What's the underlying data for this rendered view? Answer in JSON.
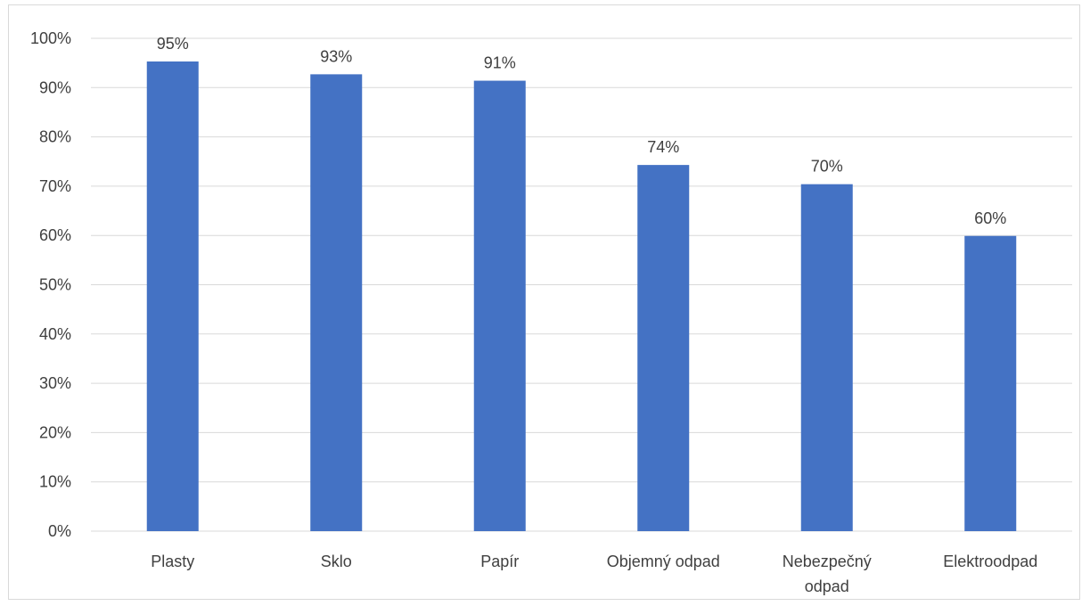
{
  "chart_data": {
    "type": "bar",
    "categories": [
      "Plasty",
      "Sklo",
      "Papír",
      "Objemný odpad",
      "Nebezpečný odpad",
      "Elektroodpad"
    ],
    "category_label_lines": [
      [
        "Plasty"
      ],
      [
        "Sklo"
      ],
      [
        "Papír"
      ],
      [
        "Objemný odpad"
      ],
      [
        "Nebezpečný",
        "odpad"
      ],
      [
        "Elektroodpad"
      ]
    ],
    "values": [
      95.3,
      92.7,
      91.4,
      74.3,
      70.4,
      59.9
    ],
    "data_labels": [
      "95%",
      "93%",
      "91%",
      "74%",
      "70%",
      "60%"
    ],
    "y_ticks": [
      0,
      10,
      20,
      30,
      40,
      50,
      60,
      70,
      80,
      90,
      100
    ],
    "y_tick_labels": [
      "0%",
      "10%",
      "20%",
      "30%",
      "40%",
      "50%",
      "60%",
      "70%",
      "80%",
      "90%",
      "100%"
    ],
    "ylim": [
      0,
      100
    ],
    "grid": true,
    "legend": "none",
    "title": "",
    "xlabel": "",
    "ylabel": "",
    "colors": {
      "bar": "#4472C4",
      "grid": "#d9d9d9",
      "axis": "#d9d9d9",
      "text": "#404040"
    }
  }
}
